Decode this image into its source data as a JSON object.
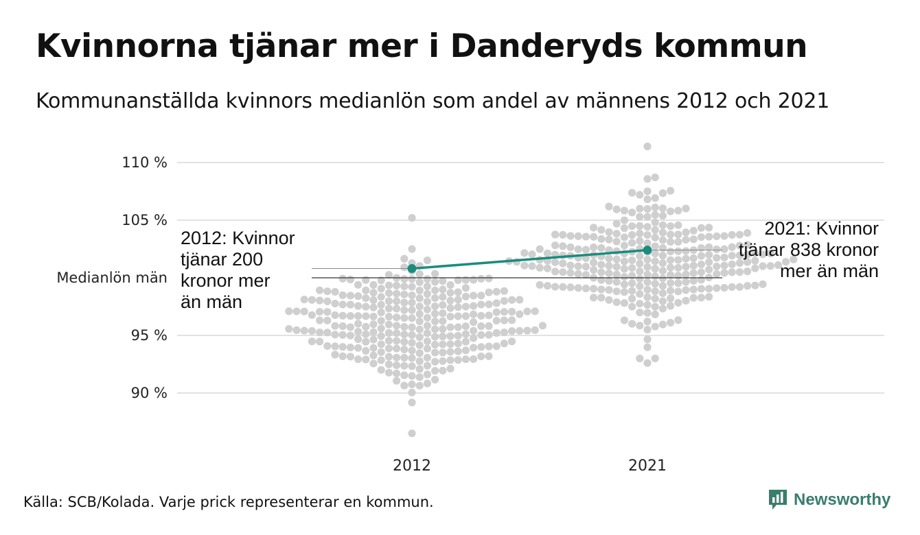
{
  "title": "Kvinnorna tjänar mer i Danderyds kommun",
  "subtitle": "Kommunanställda kvinnors medianlön som andel av männens 2012 och 2021",
  "source": "Källa: SCB/Kolada. Varje prick representerar en kommun.",
  "brand": {
    "name": "Newsworthy",
    "logo_icon": "bar-chart-speech-icon",
    "color": "#3a7d6c"
  },
  "colors": {
    "dots": "#cfcfcf",
    "highlight": "#1a8c7d",
    "grid": "#e2e2e2",
    "reference": "#333333"
  },
  "chart_data": {
    "type": "scatter",
    "title": "Kvinnorna tjänar mer i Danderyds kommun",
    "subtitle": "Kommunanställda kvinnors medianlön som andel av männens 2012 och 2021",
    "categories": [
      "2012",
      "2021"
    ],
    "ylim": [
      86,
      112
    ],
    "yticks": [
      90,
      95,
      100,
      105,
      110
    ],
    "ytick_labels": [
      "90 %",
      "95 %",
      "Medianlön män",
      "105 %",
      "110 %"
    ],
    "grid": true,
    "reference_line": {
      "value": 100,
      "label": "Medianlön män"
    },
    "highlight": {
      "name": "Danderyd",
      "values": [
        100.8,
        102.4
      ],
      "annotations": [
        {
          "year": "2012",
          "lines": [
            "2012: Kvinnor",
            "tjänar 200",
            "kronor mer",
            "än män"
          ]
        },
        {
          "year": "2021",
          "lines": [
            "2021: Kvinnor",
            "tjänar 838 kronor",
            "mer än män"
          ]
        }
      ]
    },
    "distribution": [
      {
        "year": "2012",
        "min": 86.5,
        "max": 105.2,
        "count": 290,
        "center": 96.0,
        "spread": 2.6
      },
      {
        "year": "2021",
        "min": 92.6,
        "max": 111.4,
        "count": 290,
        "center": 101.5,
        "spread": 2.6
      }
    ]
  }
}
